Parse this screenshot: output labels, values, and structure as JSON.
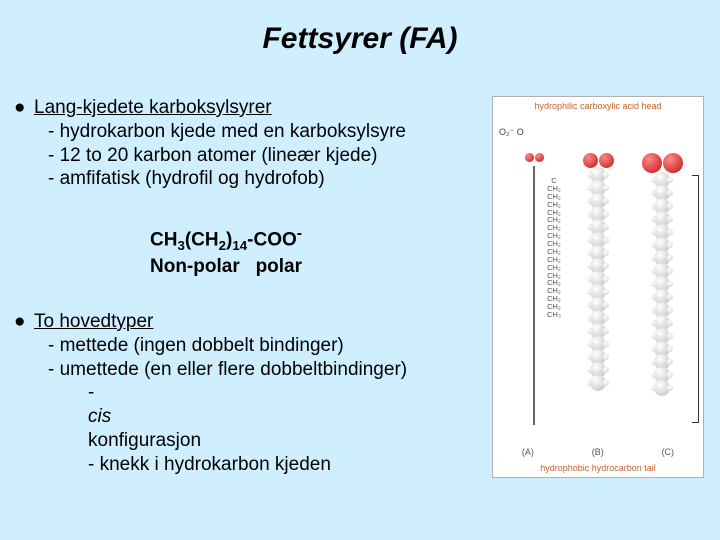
{
  "title": "Fettsyrer (FA)",
  "bullet1": {
    "head": "Lang-kjedete karboksylsyrer",
    "l1": "- hydrokarbon kjede med en karboksylsyre",
    "l2": "- 12 to 20 karbon atomer (lineær kjede)",
    "l3": "- amfifatisk (hydrofil og hydrofob)"
  },
  "formula": {
    "p1": "CH",
    "s1": "3",
    "p2": "(CH",
    "s2": "2",
    "p3": ")",
    "s3": "14",
    "p4": "-COO",
    "sup": "-",
    "label_np": "Non-polar",
    "label_p": "polar"
  },
  "bullet2": {
    "head": "To hovedtyper",
    "l1": "- mettede (ingen dobbelt bindinger)",
    "l2": "- umettede (en eller flere dobbeltbindinger)",
    "l3a": "- ",
    "l3b": "cis",
    "l3c": " konfigurasjon",
    "l4": "- knekk i hydrokarbon kjeden"
  },
  "figure": {
    "top_label": "hydrophilic carboxylic acid head",
    "bottom_label": "hydrophobic hydrocarbon tail",
    "sub_a": "(A)",
    "sub_b": "(B)",
    "sub_c": "(C)",
    "oxylabel": "O₂⁻   O",
    "chain_len": 17,
    "ch2_labels": [
      "C",
      "CH₂",
      "CH₂",
      "CH₂",
      "CH₂",
      "CH₂",
      "CH₂",
      "CH₂",
      "CH₂",
      "CH₂",
      "CH₂",
      "CH₂",
      "CH₂",
      "CH₂",
      "CH₂",
      "CH₂",
      "CH₂",
      "CH₃"
    ],
    "colors": {
      "background": "#cfefff",
      "oxygen": "#c41010",
      "carbon": "#bcbcbc",
      "panel": "#ffffff",
      "accent_text": "#c7622a"
    }
  }
}
